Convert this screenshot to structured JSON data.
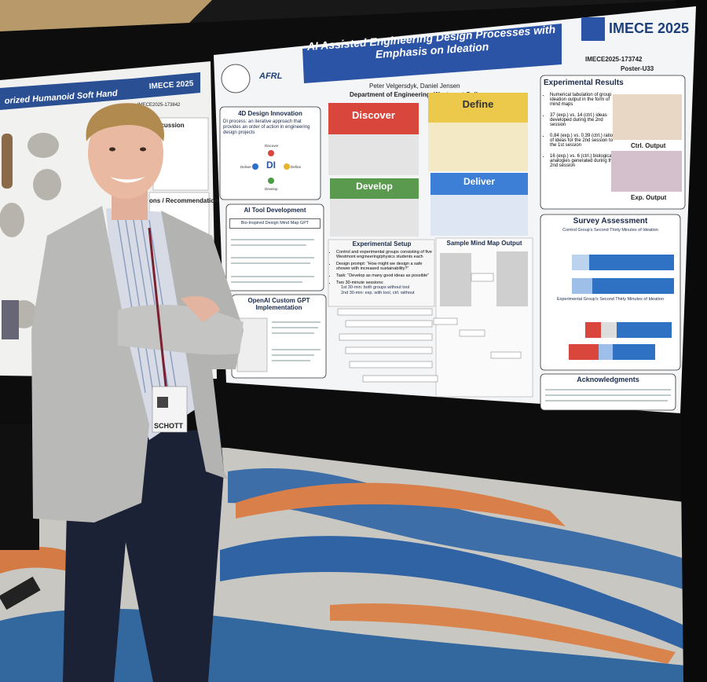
{
  "right_poster": {
    "title": "AI Assisted Engineering Design Processes with Emphasis on Ideation",
    "conference": "IMECE 2025",
    "paper_id": "IMECE2025-173742",
    "poster_id": "Poster-U33",
    "authors": "Peter Velgersdyk, Daniel Jensen",
    "affiliation": "Department of Engineering, Westmont College",
    "sponsor": "AFRL",
    "design_innovation": {
      "heading": "4D Design Innovation",
      "text": "DI process: an iterative approach that provides an order of action in engineering design projects",
      "center": "DI",
      "labels": [
        "Discover",
        "Define",
        "Develop",
        "Deliver"
      ]
    },
    "phases": [
      "Discover",
      "Define",
      "Develop",
      "Deliver"
    ],
    "ai_tool": {
      "heading": "AI Tool Development",
      "tool": "Bio-Inspired Design Mind Map GPT"
    },
    "custom_gpt": {
      "heading": "OpenAI Custom GPT Implementation"
    },
    "experimental_setup": {
      "heading": "Experimental Setup",
      "bullets": [
        "Control and experimental groups consisting of five Westmont engineering/physics students each",
        "Design prompt: “How might we design a safe shower with increased sustainability?”",
        "Task: “Develop as many good ideas as possible”",
        "Two 30-minute sessions:",
        "1st 30-min: both groups without tool",
        "2nd 30-min: exp. with tool, ctrl. without"
      ]
    },
    "mind_map": {
      "heading": "Sample Mind Map Output"
    },
    "results": {
      "heading": "Experimental Results",
      "bullets": [
        "Numerical tabulation of group ideation output in the form of mind maps",
        "37 (exp.) vs. 14 (ctrl.) ideas developed during the 2nd session",
        "0.84 (exp.) vs. 0.39 (ctrl.) ratio of ideas for the 2nd session to the 1st session",
        "16 (exp.) vs. 6 (ctrl.) biological analogies generated during the 2nd session"
      ],
      "ctrl_caption": "Ctrl. Output",
      "exp_caption": "Exp. Output"
    },
    "survey": {
      "heading": "Survey Assessment",
      "control": "Control Group's Second Thirty Minutes of Ideation",
      "experimental": "Experimental Group's Second Thirty Minutes of Ideation"
    },
    "acknowledgments": {
      "heading": "Acknowledgments"
    }
  },
  "left_poster": {
    "title": "orized Humanoid Soft Hand",
    "conference": "IMECE 2025",
    "paper_id": "IMECE2025-173842",
    "section_1": "scussion",
    "section_2": "ons / Recommendations"
  },
  "badge": {
    "text": "SCHOTT"
  }
}
